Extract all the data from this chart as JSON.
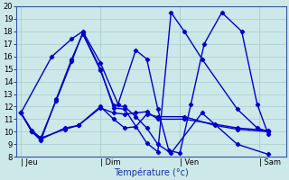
{
  "background_color": "#cce8e8",
  "grid_color": "#aacccc",
  "line_color": "#0000cc",
  "marker": "D",
  "markersize": 2.2,
  "linewidth": 1.0,
  "ylim": [
    8,
    20
  ],
  "yticks": [
    8,
    9,
    10,
    11,
    12,
    13,
    14,
    15,
    16,
    17,
    18,
    19,
    20
  ],
  "xlabel": "Température (°c)",
  "xlabel_fontsize": 7,
  "tick_fontsize": 6,
  "day_labels": [
    "| Jeu",
    "| Dim",
    "| Ven",
    "| Sam"
  ],
  "day_positions": [
    0,
    36,
    72,
    108
  ],
  "xlim": [
    -2,
    120
  ],
  "series": [
    {
      "x": [
        0,
        5,
        9,
        16,
        23,
        28,
        36,
        42,
        47,
        52,
        57,
        62,
        68,
        82,
        98,
        112
      ],
      "y": [
        11.5,
        10.0,
        9.3,
        12.6,
        15.8,
        17.8,
        14.9,
        12.1,
        12.0,
        11.2,
        10.3,
        9.0,
        8.3,
        11.5,
        9.0,
        8.2
      ]
    },
    {
      "x": [
        0,
        5,
        9,
        16,
        23,
        28,
        36,
        42,
        47,
        57,
        62,
        68,
        74,
        82,
        98,
        107,
        112
      ],
      "y": [
        11.5,
        10.1,
        9.5,
        12.5,
        15.6,
        17.9,
        15.0,
        11.9,
        11.8,
        9.1,
        8.4,
        19.5,
        18.0,
        15.8,
        11.8,
        10.3,
        10.0
      ]
    },
    {
      "x": [
        0,
        5,
        9,
        20,
        26,
        36,
        42,
        47,
        52,
        57,
        62,
        74,
        88,
        98,
        112
      ],
      "y": [
        11.5,
        10.0,
        9.4,
        10.3,
        10.5,
        12.0,
        11.0,
        10.3,
        10.4,
        11.4,
        11.2,
        11.2,
        10.5,
        10.2,
        10.0
      ]
    },
    {
      "x": [
        0,
        5,
        9,
        20,
        26,
        36,
        42,
        47,
        52,
        57,
        62,
        74,
        88,
        98,
        112
      ],
      "y": [
        11.5,
        10.0,
        9.5,
        10.2,
        10.5,
        11.9,
        11.5,
        11.4,
        11.5,
        11.6,
        11.0,
        11.0,
        10.6,
        10.3,
        10.1
      ]
    },
    {
      "x": [
        0,
        14,
        23,
        28,
        36,
        44,
        52,
        57,
        62,
        67,
        72,
        77,
        83,
        91,
        100,
        107,
        112
      ],
      "y": [
        11.5,
        16.0,
        17.4,
        18.0,
        15.5,
        12.2,
        16.5,
        15.8,
        11.8,
        8.5,
        8.3,
        12.2,
        17.0,
        19.5,
        18.0,
        12.2,
        9.8
      ]
    }
  ]
}
